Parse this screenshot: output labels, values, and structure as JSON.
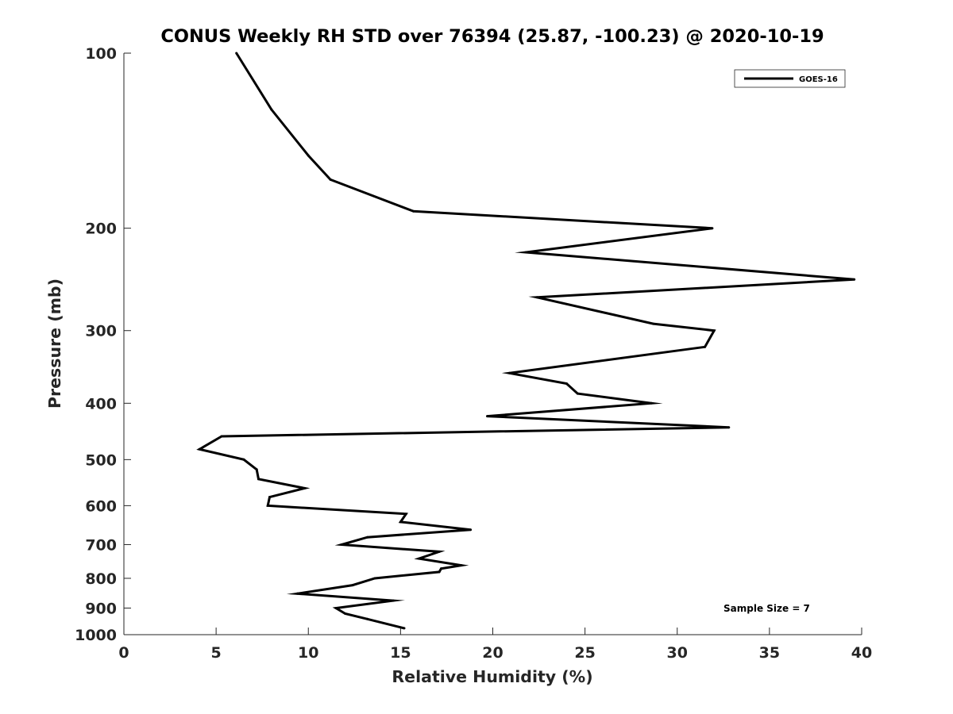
{
  "chart_data": {
    "type": "line",
    "title": "CONUS Weekly RH STD over 76394 (25.87, -100.23) @ 2020-10-19",
    "xlabel": "Relative Humidity (%)",
    "ylabel": "Pressure (mb)",
    "xlim": [
      0,
      40
    ],
    "ylim": [
      100,
      1000
    ],
    "y_scale": "log",
    "y_reversed": true,
    "x_ticks": [
      0,
      5,
      10,
      15,
      20,
      25,
      30,
      35,
      40
    ],
    "y_ticks": [
      100,
      200,
      300,
      400,
      500,
      600,
      700,
      800,
      900,
      1000
    ],
    "grid": false,
    "legend_position": "top-right",
    "annotation": "Sample Size = 7",
    "series": [
      {
        "name": "GOES-16",
        "color": "#000000",
        "x": [
          6.1,
          8.0,
          10.0,
          11.2,
          15.7,
          31.9,
          21.8,
          39.6,
          22.4,
          28.7,
          32.0,
          31.5,
          20.9,
          24.0,
          24.6,
          28.6,
          19.7,
          32.8,
          5.3,
          4.1,
          6.5,
          7.2,
          7.3,
          9.8,
          7.9,
          7.8,
          15.3,
          15.0,
          18.8,
          13.2,
          11.8,
          17.1,
          16.0,
          18.3,
          17.2,
          17.1,
          13.6,
          12.4,
          9.4,
          14.6,
          11.5,
          12.0,
          13.2,
          15.2
        ],
        "y": [
          100,
          125,
          150,
          165,
          187,
          200,
          220,
          245,
          263,
          292,
          300,
          320,
          355,
          370,
          385,
          400,
          421,
          440,
          456,
          480,
          500,
          520,
          540,
          560,
          580,
          600,
          620,
          640,
          660,
          680,
          700,
          720,
          740,
          760,
          770,
          780,
          800,
          822,
          850,
          874,
          900,
          920,
          940,
          975
        ]
      }
    ]
  }
}
